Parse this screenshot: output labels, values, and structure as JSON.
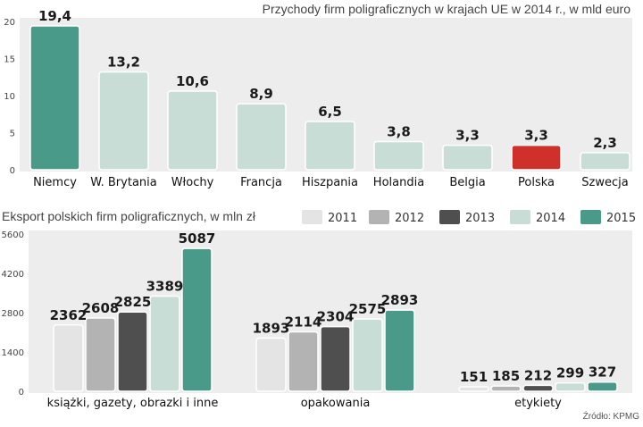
{
  "source": "Źródło: KPMG",
  "colors": {
    "panel_bg": "#ededed",
    "bar_light": "#c8ddd5",
    "bar_dark": "#4a9a8a",
    "bar_red": "#d0302a",
    "year_2011": "#e4e4e4",
    "year_2012": "#b3b3b3",
    "year_2013": "#4f4f4f",
    "year_2014": "#c8ddd5",
    "year_2015": "#4a9a8a"
  },
  "chart_data": [
    {
      "type": "bar",
      "title": "Przychody firm poligraficznych w krajach UE w 2014 r., w mld euro",
      "categories": [
        "Niemcy",
        "W. Brytania",
        "Włochy",
        "Francja",
        "Hiszpania",
        "Holandia",
        "Belgia",
        "Polska",
        "Szwecja"
      ],
      "values": [
        19.4,
        13.2,
        10.6,
        8.9,
        6.5,
        3.8,
        3.3,
        3.3,
        2.3
      ],
      "value_labels": [
        "19,4",
        "13,2",
        "10,6",
        "8,9",
        "6,5",
        "3,8",
        "3,3",
        "3,3",
        "2,3"
      ],
      "highlight": {
        "Niemcy": "dark",
        "Polska": "red"
      },
      "ylim": [
        0,
        20
      ],
      "yticks": [
        "0",
        "5",
        "10",
        "15",
        "20"
      ],
      "xlabel": "",
      "ylabel": "",
      "grid": false
    },
    {
      "type": "bar",
      "title": "Eksport polskich firm poligraficznych, w mln zł",
      "categories": [
        "książki, gazety, obrazki i inne",
        "opakowania",
        "etykiety"
      ],
      "series": [
        {
          "name": "2011",
          "values": [
            2362,
            1893,
            151
          ]
        },
        {
          "name": "2012",
          "values": [
            2608,
            2114,
            185
          ]
        },
        {
          "name": "2013",
          "values": [
            2825,
            2304,
            212
          ]
        },
        {
          "name": "2014",
          "values": [
            3389,
            2575,
            299
          ]
        },
        {
          "name": "2015",
          "values": [
            5087,
            2893,
            327
          ]
        }
      ],
      "ylim": [
        0,
        5600
      ],
      "yticks": [
        "0",
        "1400",
        "2800",
        "4200",
        "5600"
      ],
      "legend_position": "top-right",
      "xlabel": "",
      "ylabel": "",
      "grid": false
    }
  ]
}
